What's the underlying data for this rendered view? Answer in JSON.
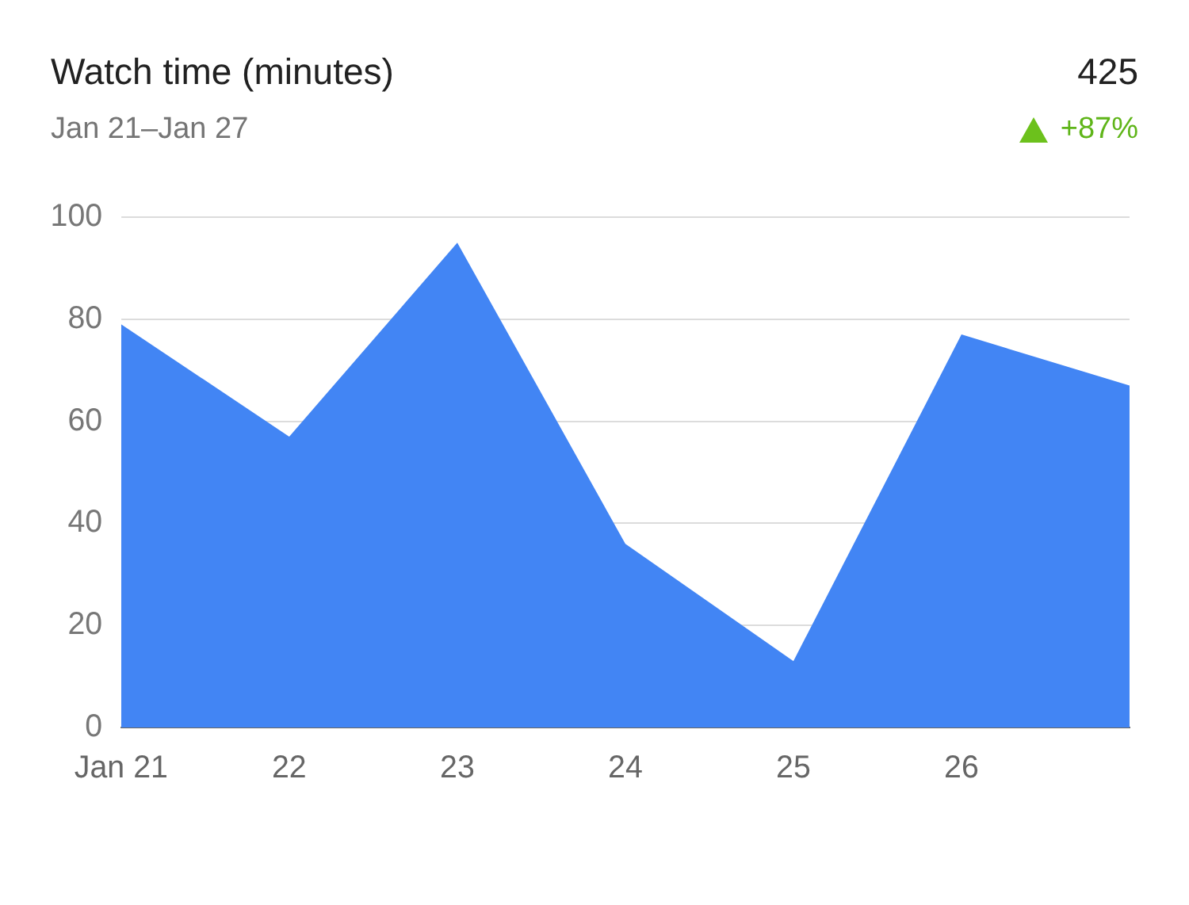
{
  "chart_data": {
    "type": "area",
    "title": "Watch time (minutes)",
    "subtitle": "Jan 21–Jan 27",
    "annotations": [
      "425",
      "+87%"
    ],
    "categories": [
      "Jan 21",
      "22",
      "23",
      "24",
      "25",
      "26",
      null
    ],
    "series": [
      {
        "color": "#4285f4",
        "values": [
          79,
          57,
          95,
          36,
          13,
          77,
          67
        ]
      }
    ],
    "ylim": [
      0,
      100
    ],
    "yticks": [
      0,
      20,
      40,
      60,
      80,
      100
    ],
    "grid": "y",
    "legend": false,
    "marker": "none"
  }
}
